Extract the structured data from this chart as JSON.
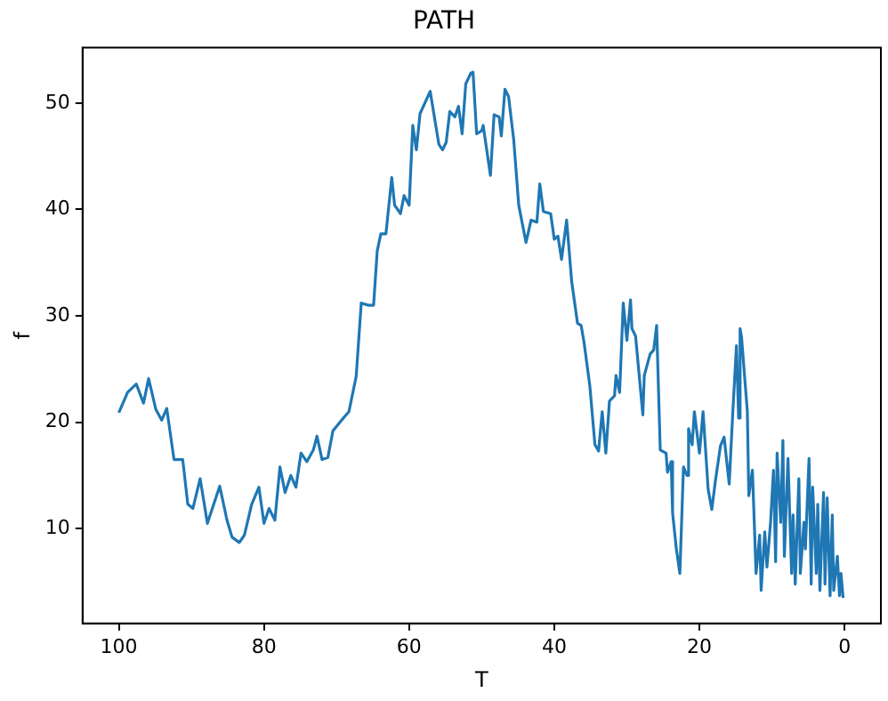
{
  "chart_data": {
    "type": "line",
    "title": "PATH",
    "xlabel": "T",
    "ylabel": "f",
    "xlim": [
      105,
      -5
    ],
    "ylim": [
      1.1,
      55.2
    ],
    "xticks": [
      100,
      80,
      60,
      40,
      20,
      0
    ],
    "yticks": [
      10,
      20,
      30,
      40,
      50
    ],
    "grid": false,
    "legend": false,
    "marker": "none",
    "line_style": "solid",
    "series": [
      {
        "color": "#1f77b4",
        "x": [
          100,
          98.8,
          97.6,
          96.6,
          95.9,
          94.9,
          94.1,
          93.4,
          92.4,
          91.2,
          90.5,
          89.8,
          88.8,
          87.8,
          86.1,
          85.1,
          84.4,
          83.4,
          82.7,
          81.7,
          80.7,
          80.0,
          79.3,
          78.5,
          77.8,
          77.1,
          76.3,
          75.6,
          74.9,
          74.1,
          73.2,
          72.7,
          72.0,
          71.2,
          70.5,
          69.3,
          68.3,
          67.3,
          66.6,
          65.6,
          64.9,
          64.4,
          63.9,
          63.2,
          62.4,
          62.0,
          61.2,
          60.7,
          60.0,
          59.5,
          59.0,
          58.5,
          57.1,
          55.9,
          55.4,
          54.9,
          54.4,
          53.7,
          53.2,
          52.7,
          52.2,
          51.5,
          51.2,
          50.7,
          50.0,
          49.8,
          48.8,
          48.3,
          47.6,
          47.3,
          46.8,
          46.3,
          45.6,
          44.9,
          43.9,
          43.2,
          42.4,
          42.0,
          41.5,
          40.5,
          40.0,
          39.5,
          39.0,
          38.3,
          37.6,
          36.8,
          36.3,
          35.9,
          35.1,
          34.4,
          33.9,
          33.4,
          32.9,
          32.4,
          31.7,
          31.5,
          31.0,
          30.5,
          30.0,
          29.5,
          29.3,
          28.8,
          27.8,
          27.6,
          26.8,
          26.3,
          25.9,
          25.4,
          24.6,
          24.4,
          23.9,
          23.7,
          23.2,
          22.7,
          22.2,
          21.7,
          21.5,
          21.0,
          20.7,
          20.0,
          19.5,
          18.8,
          18.3,
          17.8,
          17.1,
          16.6,
          15.9,
          15.4,
          14.9,
          14.6,
          14.4,
          14.2,
          13.4,
          13.2,
          12.7,
          12.2,
          11.7,
          11.5,
          11.0,
          10.7,
          10.2,
          9.8,
          9.5,
          9.3,
          8.8,
          8.5,
          8.3,
          7.8,
          7.3,
          7.1,
          6.8,
          6.3,
          6.1,
          5.6,
          5.4,
          4.9,
          4.6,
          4.4,
          3.9,
          3.7,
          3.4,
          2.9,
          2.7,
          2.4,
          2.0,
          1.7,
          1.5,
          1.0,
          0.7,
          0.5,
          0.2
        ],
        "values": [
          20.9,
          22.8,
          23.6,
          21.8,
          24.1,
          21.2,
          20.2,
          21.3,
          16.5,
          16.5,
          12.3,
          11.9,
          14.7,
          10.5,
          14.0,
          10.8,
          9.2,
          8.7,
          9.4,
          12.3,
          13.9,
          10.5,
          11.9,
          10.8,
          15.8,
          13.4,
          15.0,
          13.9,
          17.1,
          16.3,
          17.4,
          18.7,
          16.5,
          16.7,
          19.2,
          20.2,
          21.0,
          24.3,
          31.2,
          31.0,
          31.0,
          36.1,
          37.7,
          37.7,
          43.0,
          40.4,
          39.6,
          41.3,
          40.4,
          47.9,
          45.6,
          49.0,
          51.1,
          46.1,
          45.6,
          46.3,
          49.2,
          48.7,
          49.7,
          47.1,
          51.8,
          52.8,
          52.9,
          47.1,
          47.4,
          47.9,
          43.2,
          48.9,
          48.7,
          46.9,
          51.3,
          50.6,
          46.6,
          40.4,
          36.9,
          39.0,
          38.8,
          42.4,
          39.8,
          39.6,
          37.2,
          37.5,
          35.3,
          39.0,
          33.2,
          29.3,
          29.1,
          27.5,
          23.4,
          17.9,
          17.3,
          21.0,
          17.1,
          22.0,
          22.5,
          24.4,
          22.8,
          31.2,
          27.7,
          31.5,
          28.8,
          28.1,
          20.7,
          24.4,
          26.4,
          26.8,
          29.1,
          17.4,
          17.1,
          15.3,
          16.3,
          11.5,
          8.2,
          5.8,
          15.8,
          15.0,
          19.4,
          17.9,
          21.0,
          17.1,
          21.0,
          13.7,
          11.8,
          14.5,
          17.8,
          18.6,
          14.2,
          21.0,
          27.2,
          20.4,
          28.8,
          28.0,
          21.0,
          13.1,
          15.5,
          5.8,
          9.4,
          4.2,
          9.7,
          6.4,
          10.6,
          15.5,
          6.9,
          17.1,
          10.6,
          18.3,
          7.4,
          16.6,
          5.8,
          11.3,
          4.8,
          14.7,
          5.8,
          10.6,
          8.1,
          16.6,
          4.8,
          13.9,
          5.8,
          12.3,
          4.2,
          13.4,
          4.8,
          12.9,
          3.7,
          11.3,
          4.2,
          7.4,
          3.7,
          5.8,
          3.5
        ]
      }
    ]
  }
}
